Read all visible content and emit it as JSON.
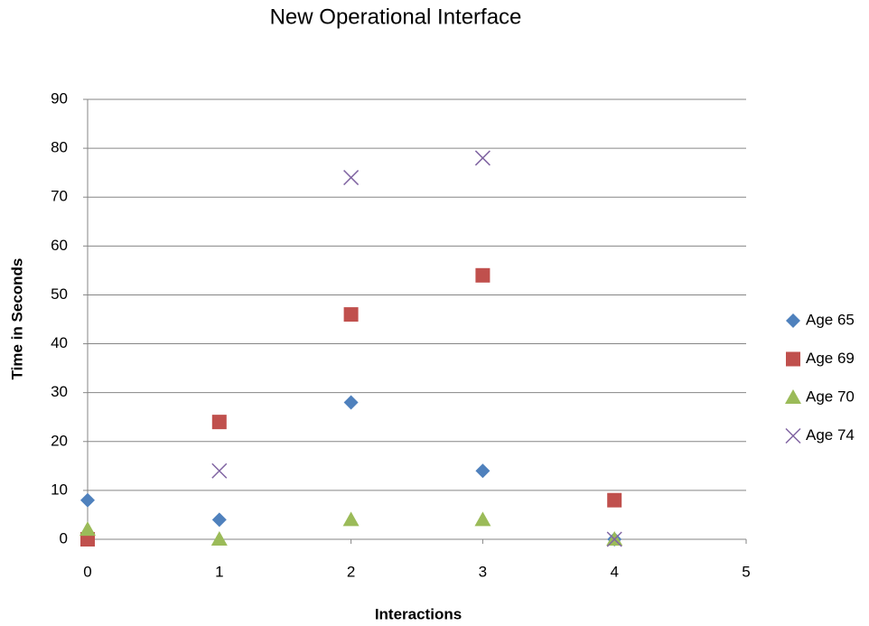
{
  "chart_data": {
    "type": "scatter",
    "title": "New Operational Interface",
    "x_label": "Interactions",
    "y_label": "Time in Seconds",
    "xlim": [
      0,
      5
    ],
    "xticks": [
      0,
      1,
      2,
      3,
      4,
      5
    ],
    "ylim": [
      0,
      90
    ],
    "yticks": [
      0,
      10,
      20,
      30,
      40,
      50,
      60,
      70,
      80,
      90
    ],
    "grid": true,
    "legend": "right",
    "series": [
      {
        "name": "Age 65",
        "color": "#4f81bd",
        "marker": "diamond",
        "x": [
          0,
          1,
          2,
          3,
          4
        ],
        "values": [
          8,
          4,
          28,
          14,
          0
        ]
      },
      {
        "name": "Age 69",
        "color": "#c0504d",
        "marker": "square",
        "x": [
          0,
          1,
          2,
          3,
          4
        ],
        "values": [
          0,
          24,
          46,
          54,
          8
        ]
      },
      {
        "name": "Age 70",
        "color": "#9bbb59",
        "marker": "triangle",
        "x": [
          0,
          1,
          2,
          3,
          4
        ],
        "values": [
          2,
          0,
          4,
          4,
          0
        ]
      },
      {
        "name": "Age 74",
        "color": "#8064a2",
        "marker": "x",
        "x": [
          1,
          2,
          3,
          4
        ],
        "values": [
          14,
          74,
          78,
          0
        ]
      }
    ]
  }
}
